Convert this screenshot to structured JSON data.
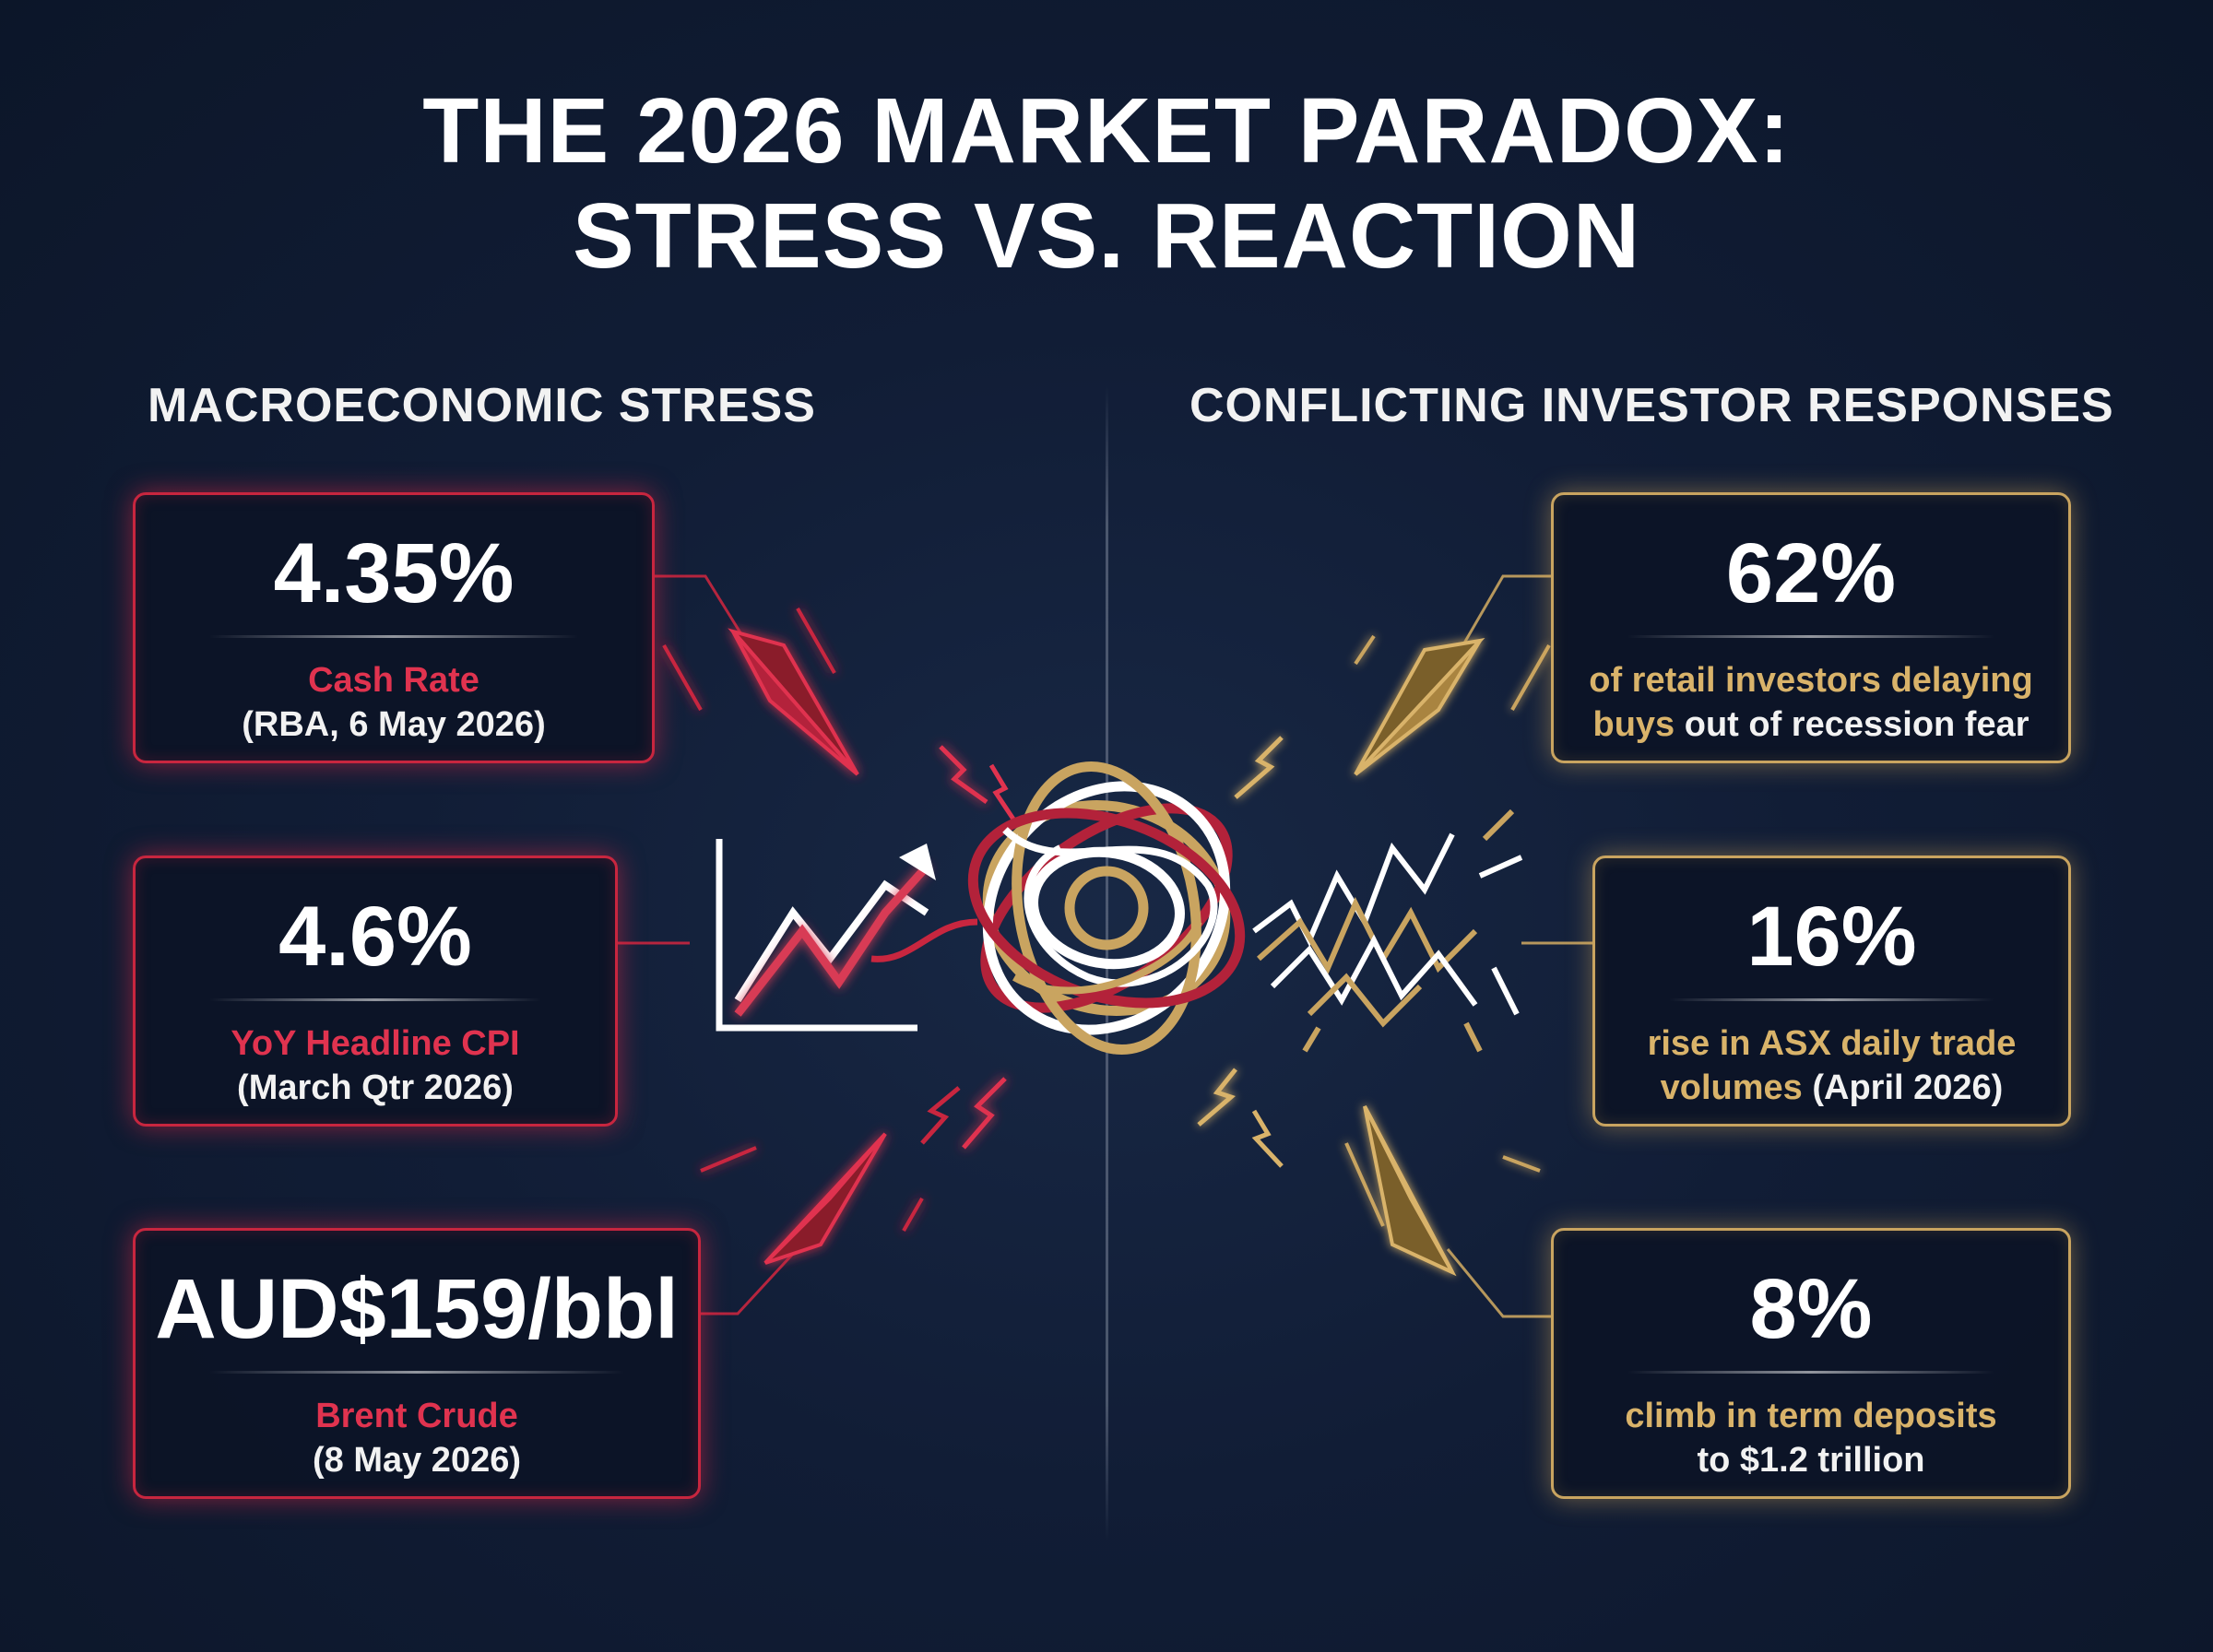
{
  "title": {
    "line1": "THE 2026 MARKET PARADOX:",
    "line2": "STRESS VS. REACTION"
  },
  "left": {
    "heading": "MACROECONOMIC STRESS",
    "cards": [
      {
        "value": "4.35%",
        "label": "Cash Rate",
        "detail": "(RBA, 6 May 2026)"
      },
      {
        "value": "4.6%",
        "label": "YoY Headline CPI",
        "detail": "(March Qtr 2026)"
      },
      {
        "value": "AUD$159/bbl",
        "label": "Brent Crude",
        "detail": "(8 May 2026)"
      }
    ]
  },
  "right": {
    "heading": "CONFLICTING INVESTOR RESPONSES",
    "cards": [
      {
        "value": "62%",
        "line1": "of retail investors delaying",
        "line2_highlight": "buys",
        "line2_rest": " out of recession fear"
      },
      {
        "value": "16%",
        "line1": "rise in ASX daily trade",
        "line2_highlight": "volumes",
        "line2_rest": " (April 2026)"
      },
      {
        "value": "8%",
        "line1": "climb in term deposits",
        "line2_highlight": "",
        "line2_rest": "to $1.2 trillion"
      }
    ]
  },
  "colors": {
    "stress_red": "#c8263f",
    "reaction_gold": "#c9a460",
    "background": "#111d36"
  },
  "icons": [
    "rising-chart-icon",
    "tangled-knot-icon",
    "chaotic-lines-icon",
    "arrow-shard-icon",
    "lightning-bolt-icon"
  ]
}
